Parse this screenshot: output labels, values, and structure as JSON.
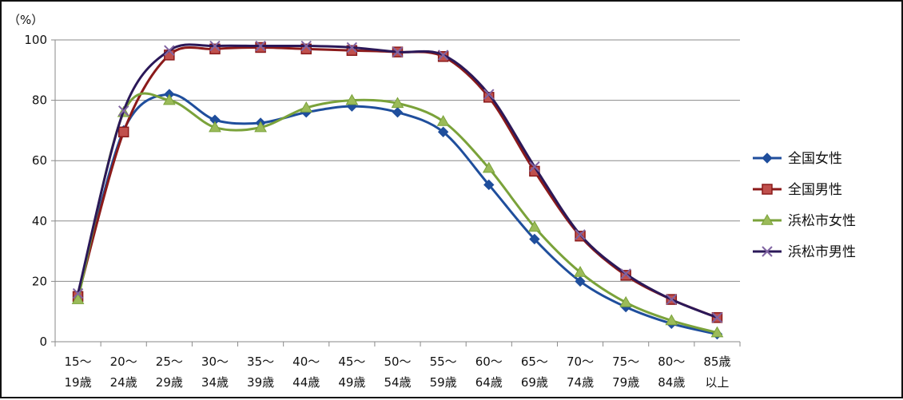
{
  "chart_data": {
    "type": "line",
    "ylabel": "（%）",
    "ylim": [
      0,
      100
    ],
    "yticks": [
      0,
      20,
      40,
      60,
      80,
      100
    ],
    "grid": true,
    "legend_position": "right",
    "categories": [
      [
        "15〜",
        "19歳"
      ],
      [
        "20〜",
        "24歳"
      ],
      [
        "25〜",
        "29歳"
      ],
      [
        "30〜",
        "34歳"
      ],
      [
        "35〜",
        "39歳"
      ],
      [
        "40〜",
        "44歳"
      ],
      [
        "45〜",
        "49歳"
      ],
      [
        "50〜",
        "54歳"
      ],
      [
        "55〜",
        "59歳"
      ],
      [
        "60〜",
        "64歳"
      ],
      [
        "65〜",
        "69歳"
      ],
      [
        "70〜",
        "74歳"
      ],
      [
        "75〜",
        "79歳"
      ],
      [
        "80〜",
        "84歳"
      ],
      [
        "85歳",
        "以上"
      ]
    ],
    "series": [
      {
        "name": "全国女性",
        "color": "#1f4e9c",
        "marker": "diamond",
        "values": [
          15,
          70,
          82,
          73.5,
          72.5,
          76,
          78,
          76,
          69.5,
          52,
          34,
          20,
          11.5,
          6,
          2.5
        ]
      },
      {
        "name": "全国男性",
        "color": "#8b1a1a",
        "marker": "square",
        "values": [
          15,
          69.5,
          95,
          97,
          97.5,
          97,
          96.5,
          96,
          94.5,
          81,
          56.5,
          35,
          22,
          14,
          8
        ]
      },
      {
        "name": "浜松市女性",
        "color": "#7aa23a",
        "marker": "triangle",
        "values": [
          14,
          76,
          80,
          71,
          71,
          77.5,
          80,
          79,
          73,
          57.5,
          38,
          23,
          13,
          7,
          3
        ]
      },
      {
        "name": "浜松市男性",
        "color": "#2b1858",
        "marker": "cross",
        "values": [
          16,
          76.5,
          96.5,
          98,
          98,
          98,
          97.5,
          96,
          95,
          82,
          58,
          35.5,
          22.5,
          14,
          8
        ]
      }
    ]
  }
}
